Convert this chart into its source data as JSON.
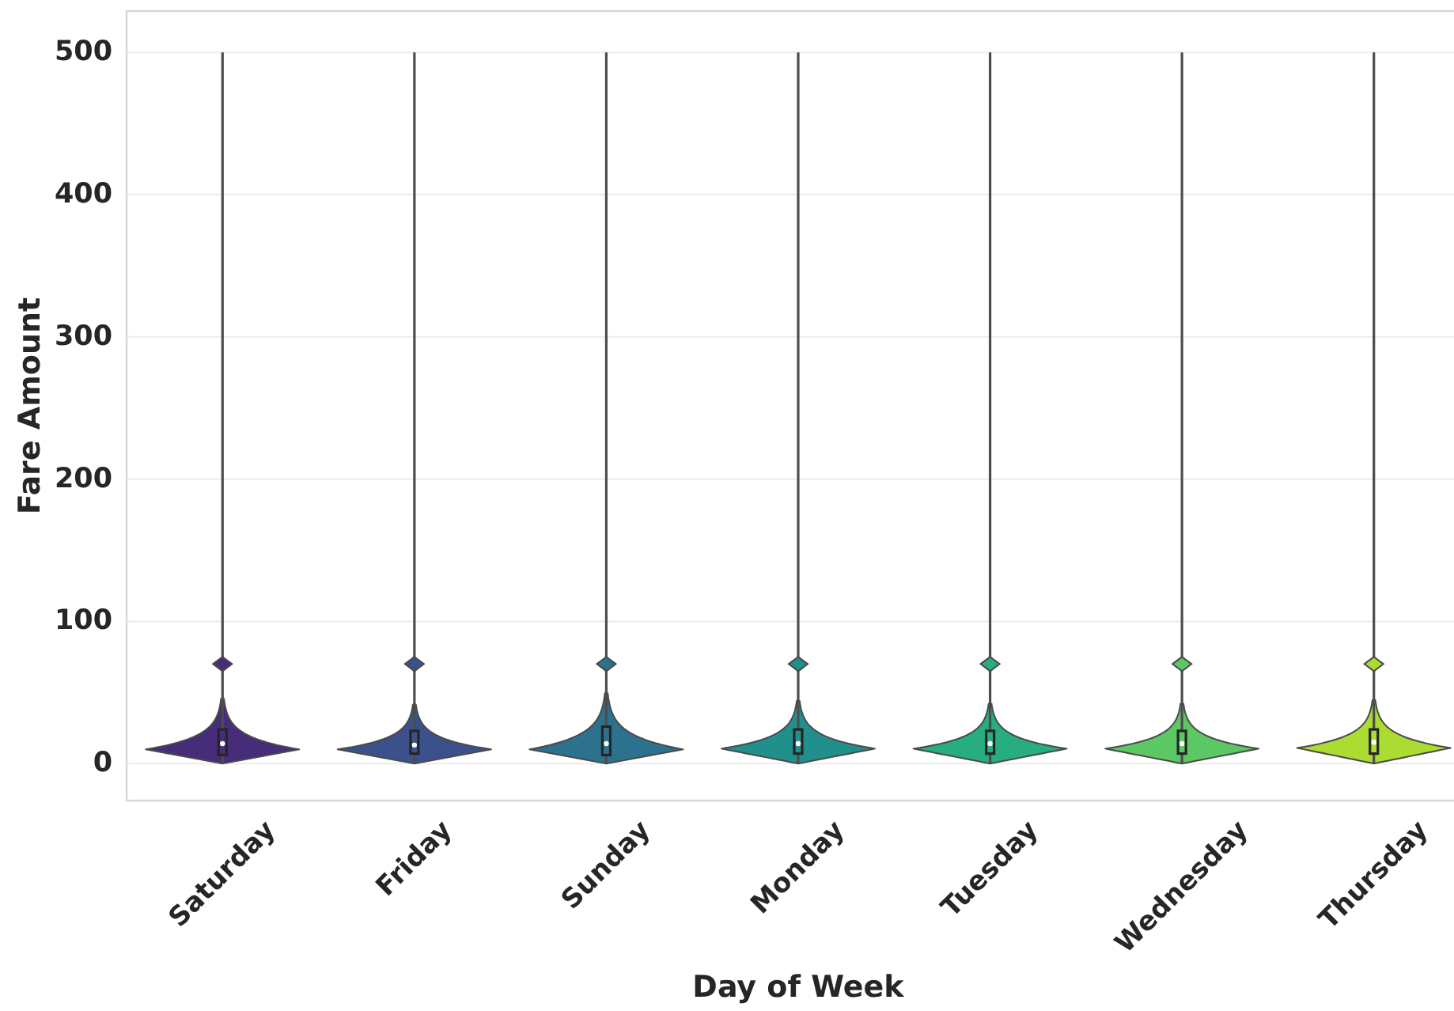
{
  "chart_data": {
    "type": "box",
    "xlabel": "Day of Week",
    "ylabel": "Fare Amount",
    "categories": [
      "Saturday",
      "Friday",
      "Sunday",
      "Monday",
      "Tuesday",
      "Wednesday",
      "Thursday"
    ],
    "colors": [
      "#472c7a",
      "#3b518b",
      "#2c718e",
      "#21908d",
      "#27ad81",
      "#5cc863",
      "#aadc32"
    ],
    "boxes": [
      {
        "low": 0,
        "q1": 6,
        "median": 14,
        "q3": 24,
        "high": 500
      },
      {
        "low": 0,
        "q1": 7,
        "median": 13,
        "q3": 23,
        "high": 500
      },
      {
        "low": 0,
        "q1": 6,
        "median": 14,
        "q3": 26,
        "high": 500
      },
      {
        "low": 0,
        "q1": 7,
        "median": 14,
        "q3": 24,
        "high": 500
      },
      {
        "low": 0,
        "q1": 7,
        "median": 14,
        "q3": 23,
        "high": 500
      },
      {
        "low": 0,
        "q1": 7,
        "median": 14,
        "q3": 23,
        "high": 500
      },
      {
        "low": 0,
        "q1": 7,
        "median": 15,
        "q3": 24,
        "high": 500
      }
    ],
    "series": [
      {
        "type": "scatter",
        "x": [
          "Saturday",
          "Friday",
          "Sunday",
          "Monday",
          "Tuesday",
          "Wednesday",
          "Thursday"
        ],
        "values": [
          70,
          70,
          70,
          70,
          70,
          70,
          70
        ],
        "colors": [
          "#472c7a",
          "#3b518b",
          "#2c718e",
          "#21908d",
          "#27ad81",
          "#5cc863",
          "#aadc32"
        ]
      }
    ],
    "marker": "diamond",
    "ylim": [
      -26,
      529
    ],
    "yticks": [
      0,
      100,
      200,
      300,
      400,
      500
    ],
    "grid": "y"
  }
}
